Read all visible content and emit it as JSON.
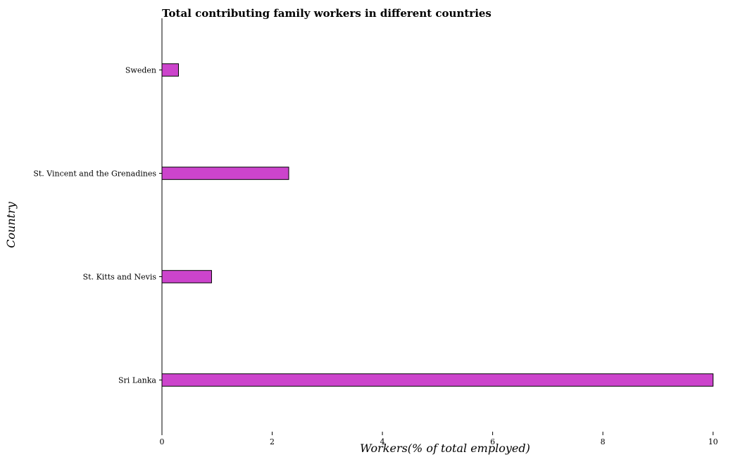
{
  "chart_data": {
    "type": "bar",
    "orientation": "horizontal",
    "title": "Total contributing family workers in different countries",
    "xlabel": "Workers(% of total employed)",
    "ylabel": "Country",
    "categories": [
      "Sri Lanka",
      "St. Kitts and Nevis",
      "St. Vincent and the Grenadines",
      "Sweden"
    ],
    "values": [
      10.0,
      0.9,
      2.3,
      0.3
    ],
    "xlim": [
      0,
      10.4
    ],
    "xticks": [
      0,
      2,
      4,
      6,
      8,
      10
    ],
    "grid": false,
    "legend": "none",
    "bar_color": "#cc44cc",
    "bar_edge_color": "#000000"
  }
}
